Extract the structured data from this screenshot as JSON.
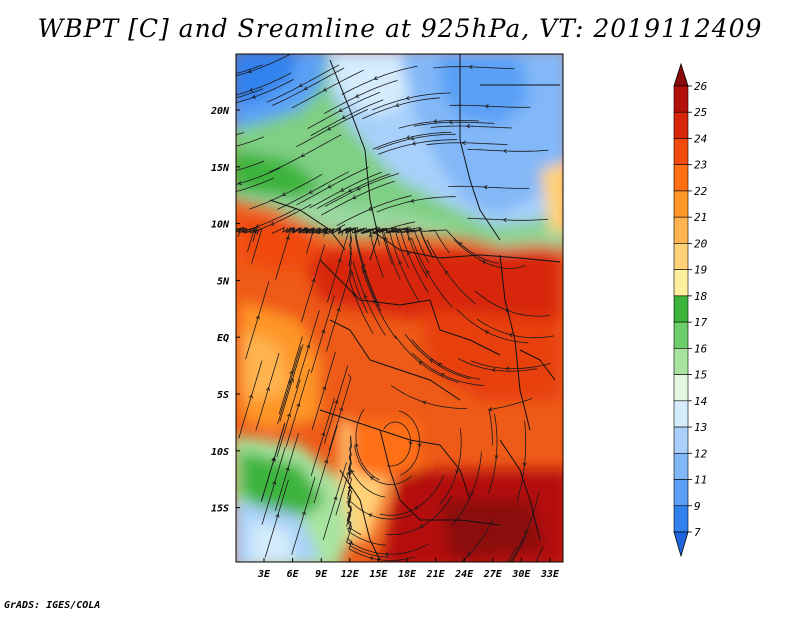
{
  "title": "WBPT [C] and Sreamline at 925hPa, VT: 2019112409",
  "credit": "GrADS: IGES/COLA",
  "map": {
    "lat_labels": [
      "20N",
      "15N",
      "10N",
      "5N",
      "EQ",
      "5S",
      "10S",
      "15S"
    ],
    "lon_labels": [
      "3E",
      "6E",
      "9E",
      "12E",
      "15E",
      "18E",
      "21E",
      "24E",
      "27E",
      "30E",
      "33E"
    ],
    "fields": [
      "WBPT [C]",
      "Streamline"
    ],
    "level": "925hPa",
    "valid_time": "2019112409"
  },
  "colorbar": {
    "labels": [
      "7",
      "9",
      "11",
      "12",
      "13",
      "14",
      "15",
      "16",
      "17",
      "18",
      "19",
      "20",
      "21",
      "22",
      "23",
      "24",
      "25",
      "26"
    ],
    "colors": [
      "#1e64dc",
      "#3282ee",
      "#5aa0f6",
      "#82b8f8",
      "#a8d0fa",
      "#d4ecfc",
      "#e6f8e0",
      "#a8e4a0",
      "#6ccf6a",
      "#3cb43c",
      "#fff0a0",
      "#ffd278",
      "#ffb450",
      "#ff9628",
      "#ff7014",
      "#f04a0c",
      "#d8260a",
      "#b4100a",
      "#8c0a0a"
    ]
  }
}
